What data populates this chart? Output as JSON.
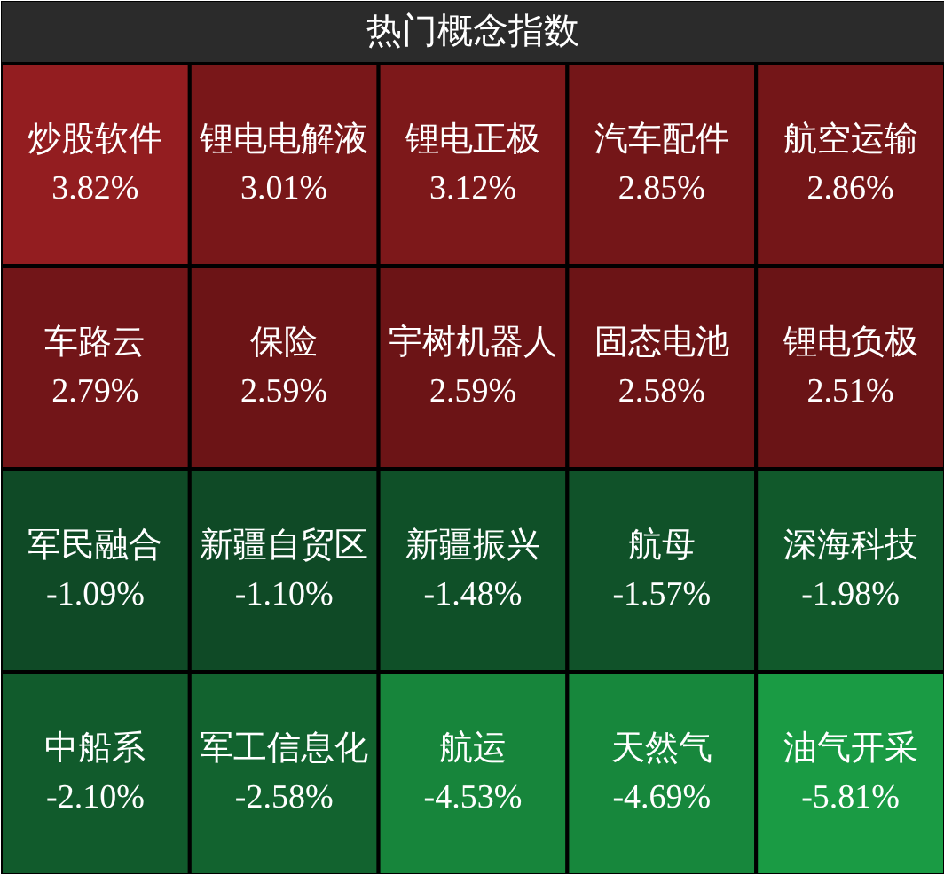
{
  "chart_data": {
    "type": "other",
    "title": "热门概念指数",
    "categories": [
      "炒股软件",
      "锂电电解液",
      "锂电正极",
      "汽车配件",
      "航空运输",
      "车路云",
      "保险",
      "宇树机器人",
      "固态电池",
      "锂电负极",
      "军民融合",
      "新疆自贸区",
      "新疆振兴",
      "航母",
      "深海科技",
      "中船系",
      "军工信息化",
      "航运",
      "天然气",
      "油气开采"
    ],
    "values": [
      3.82,
      3.01,
      3.12,
      2.85,
      2.86,
      2.79,
      2.59,
      2.59,
      2.58,
      2.51,
      -1.09,
      -1.1,
      -1.48,
      -1.57,
      -1.98,
      -2.1,
      -2.58,
      -4.53,
      -4.69,
      -5.81
    ],
    "value_labels": [
      "3.82%",
      "3.01%",
      "3.12%",
      "2.85%",
      "2.86%",
      "2.79%",
      "2.59%",
      "2.59%",
      "2.58%",
      "2.51%",
      "-1.09%",
      "-1.10%",
      "-1.48%",
      "-1.57%",
      "-1.98%",
      "-2.10%",
      "-2.58%",
      "-4.53%",
      "-4.69%",
      "-5.81%"
    ]
  }
}
